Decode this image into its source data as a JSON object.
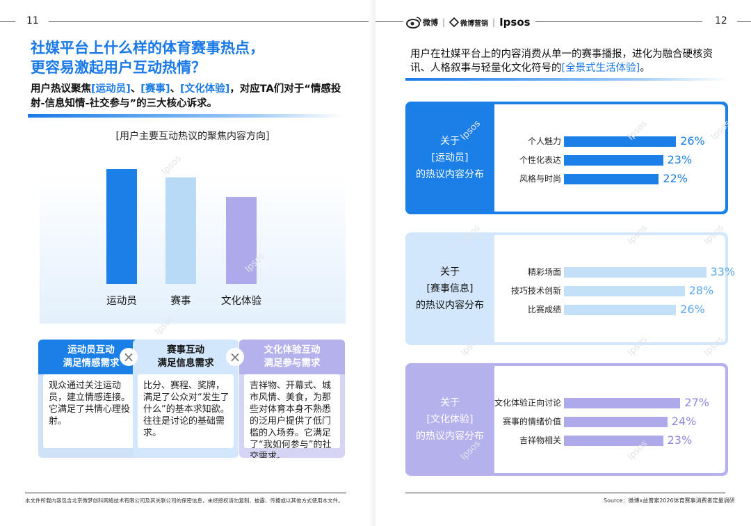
{
  "left": {
    "page_number": "11",
    "title_line1": "社媒平台上什么样的体育赛事热点，",
    "title_line2": "更容易激起用户互动热情？",
    "subtitle": {
      "p1": "用户热议聚焦",
      "h1": "[运动员]",
      "p2": "、",
      "h2": "[赛事]",
      "p3": "、",
      "h3": "[文化体验]",
      "p4": "，对应TA们对于“情感投射-信息知情-社交参与”的三大核心诉求。"
    },
    "chart_data": {
      "type": "bar",
      "title": "[用户主要互动热议的聚焦内容方向]",
      "categories": [
        "运动员",
        "赛事",
        "文化体验"
      ],
      "values": [
        100,
        93,
        76
      ],
      "colors": [
        "#1a7fe6",
        "#b9daf7",
        "#aeaaea"
      ],
      "ylim": [
        0,
        100
      ],
      "xlabel": "",
      "ylabel": ""
    },
    "cards": [
      {
        "head1": "运动员互动",
        "head2": "满足情感需求",
        "body": "观众通过关注运动员，建立情感连接。它满足了共情心理投射。",
        "head_bg": "#1a7fe6",
        "head_fg": "#ffffff",
        "frame": "#cfe3f8"
      },
      {
        "head1": "赛事互动",
        "head2": "满足信息需求",
        "body": "比分、赛程、奖牌，满足了公众对“发生了什么”的基本求知欲。往往是讨论的基础需求。",
        "head_bg": "#d2e7fb",
        "head_fg": "#111111",
        "frame": "#d2e7fb"
      },
      {
        "head1": "文化体验互动",
        "head2": "满足参与需求",
        "body": "吉祥物、开幕式、城市风情、美食，为那些对体育本身不熟悉的泛用户提供了低门槛的入场券。它满足了“我如何参与”的社交需求。",
        "head_bg": "#b5b1ec",
        "head_fg": "#ffffff",
        "frame": "#d6d4f4"
      }
    ],
    "separator": "×",
    "footnote": "本文件所载内容包含北京微梦创科网络技术有限公司及其关联公司的保密信息，未经授权请勿复制、披露、传播或以其他方式使用本文件。"
  },
  "right": {
    "page_number": "12",
    "logos": {
      "weibo": "微博",
      "brand2": "微博营销",
      "separator": "|",
      "ipsos": "Ipsos"
    },
    "title": {
      "p1": "用户在社媒平台上的内容消费从单一的赛事播报，进化为融合硬核资讯、人格叙事与轻量化文化符号的",
      "h1": "[全景式生活体验]",
      "p2": "。"
    },
    "panels": [
      {
        "tab_line1": "关于",
        "tab_line2": "[运动员]",
        "tab_line3": "的热议内容分布",
        "tab_bg": "#1a7fe6",
        "tab_fg": "#ffffff",
        "frame": "#1a7fe6",
        "bar_color": "#1a7fe6",
        "value_color": "#1a7fe6",
        "rows": [
          {
            "label": "个人魅力",
            "value": 26,
            "value_label": "26%"
          },
          {
            "label": "个性化表达",
            "value": 23,
            "value_label": "23%"
          },
          {
            "label": "风格与时尚",
            "value": 22,
            "value_label": "22%"
          }
        ]
      },
      {
        "tab_line1": "关于",
        "tab_line2": "[赛事信息]",
        "tab_line3": "的热议内容分布",
        "tab_bg": "#d2e7fb",
        "tab_fg": "#111111",
        "frame": "#d2e7fb",
        "bar_color": "#c4e0f8",
        "value_color": "#5aa6ee",
        "rows": [
          {
            "label": "精彩场面",
            "value": 33,
            "value_label": "33%"
          },
          {
            "label": "技巧技术创新",
            "value": 28,
            "value_label": "28%"
          },
          {
            "label": "比赛成绩",
            "value": 26,
            "value_label": "26%"
          }
        ]
      },
      {
        "tab_line1": "关于",
        "tab_line2": "[文化体验]",
        "tab_line3": "的热议内容分布",
        "tab_bg": "#b5b1ec",
        "tab_fg": "#ffffff",
        "frame": "#b5b1ec",
        "bar_color": "#aeaaea",
        "value_color": "#8c87dc",
        "rows": [
          {
            "label": "文化体验正向讨论",
            "value": 27,
            "value_label": "27%"
          },
          {
            "label": "赛事的情绪价值",
            "value": 24,
            "value_label": "24%"
          },
          {
            "label": "吉祥物相关",
            "value": 23,
            "value_label": "23%"
          }
        ]
      }
    ],
    "source": "Source：微博x益普索2026体育赛事消费者定量调研"
  }
}
